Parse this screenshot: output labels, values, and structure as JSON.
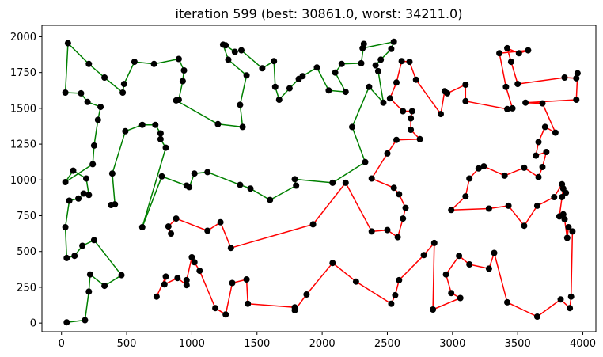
{
  "chart_data": {
    "type": "line",
    "title": "iteration 599 (best: 30861.0, worst: 34211.0)",
    "xlabel": "",
    "ylabel": "",
    "xlim": [
      -150,
      4100
    ],
    "ylim": [
      -60,
      2080
    ],
    "xticks": [
      0,
      500,
      1000,
      1500,
      2000,
      2500,
      3000,
      3500,
      4000
    ],
    "yticks": [
      0,
      250,
      500,
      750,
      1000,
      1250,
      1500,
      1750,
      2000
    ],
    "grid": false,
    "colors": {
      "green_route": "#008000",
      "red_route": "#ff0000",
      "city": "#000000"
    },
    "series": [
      {
        "color": "green",
        "points": [
          [
            40,
            5
          ],
          [
            180,
            20
          ],
          [
            210,
            220
          ],
          [
            220,
            340
          ],
          [
            330,
            260
          ],
          [
            460,
            335
          ],
          [
            250,
            580
          ],
          [
            160,
            540
          ],
          [
            100,
            470
          ],
          [
            40,
            455
          ],
          [
            30,
            670
          ],
          [
            60,
            855
          ],
          [
            130,
            870
          ],
          [
            170,
            905
          ],
          [
            210,
            895
          ],
          [
            190,
            1010
          ],
          [
            90,
            1065
          ],
          [
            30,
            985
          ],
          [
            240,
            1110
          ],
          [
            250,
            1240
          ],
          [
            280,
            1420
          ],
          [
            300,
            1510
          ],
          [
            200,
            1545
          ],
          [
            150,
            1605
          ],
          [
            30,
            1610
          ],
          [
            50,
            1955
          ],
          [
            210,
            1810
          ],
          [
            330,
            1715
          ],
          [
            470,
            1610
          ],
          [
            480,
            1670
          ],
          [
            560,
            1825
          ],
          [
            710,
            1810
          ],
          [
            900,
            1845
          ],
          [
            940,
            1765
          ],
          [
            930,
            1690
          ],
          [
            900,
            1560
          ],
          [
            880,
            1555
          ],
          [
            1200,
            1390
          ],
          [
            1390,
            1370
          ],
          [
            1370,
            1525
          ],
          [
            1420,
            1730
          ],
          [
            1280,
            1840
          ],
          [
            1240,
            1945
          ],
          [
            1260,
            1940
          ],
          [
            1330,
            1895
          ],
          [
            1380,
            1905
          ],
          [
            1540,
            1780
          ],
          [
            1630,
            1830
          ],
          [
            1640,
            1650
          ],
          [
            1670,
            1560
          ],
          [
            1750,
            1640
          ],
          [
            1820,
            1705
          ],
          [
            1850,
            1725
          ],
          [
            1960,
            1785
          ],
          [
            2050,
            1625
          ],
          [
            2180,
            1615
          ],
          [
            2100,
            1750
          ],
          [
            2150,
            1810
          ],
          [
            2300,
            1815
          ],
          [
            2320,
            1950
          ],
          [
            2310,
            1920
          ],
          [
            2550,
            1965
          ],
          [
            2530,
            1915
          ],
          [
            2450,
            1840
          ],
          [
            2410,
            1800
          ],
          [
            2430,
            1760
          ],
          [
            2470,
            1540
          ],
          [
            2360,
            1650
          ],
          [
            2230,
            1370
          ],
          [
            2330,
            1125
          ],
          [
            2080,
            980
          ],
          [
            1790,
            1005
          ],
          [
            1800,
            960
          ],
          [
            1600,
            860
          ],
          [
            1450,
            940
          ],
          [
            1370,
            965
          ],
          [
            1120,
            1055
          ],
          [
            1020,
            1045
          ],
          [
            980,
            950
          ],
          [
            960,
            960
          ],
          [
            770,
            1025
          ],
          [
            620,
            670
          ],
          [
            800,
            1225
          ],
          [
            760,
            1285
          ],
          [
            760,
            1325
          ],
          [
            720,
            1385
          ],
          [
            620,
            1385
          ],
          [
            490,
            1340
          ],
          [
            390,
            1045
          ],
          [
            410,
            830
          ],
          [
            380,
            825
          ]
        ]
      },
      {
        "color": "red",
        "points": [
          [
            730,
            185
          ],
          [
            800,
            325
          ],
          [
            790,
            270
          ],
          [
            890,
            315
          ],
          [
            960,
            265
          ],
          [
            960,
            300
          ],
          [
            1000,
            460
          ],
          [
            1020,
            425
          ],
          [
            1060,
            365
          ],
          [
            1180,
            105
          ],
          [
            1260,
            60
          ],
          [
            1310,
            280
          ],
          [
            1420,
            305
          ],
          [
            1430,
            135
          ],
          [
            1790,
            110
          ],
          [
            1790,
            90
          ],
          [
            1880,
            200
          ],
          [
            2080,
            420
          ],
          [
            2260,
            290
          ],
          [
            2530,
            135
          ],
          [
            2560,
            195
          ],
          [
            2590,
            300
          ],
          [
            2780,
            475
          ],
          [
            2860,
            560
          ],
          [
            2850,
            95
          ],
          [
            3060,
            175
          ],
          [
            2990,
            210
          ],
          [
            2950,
            340
          ],
          [
            3050,
            470
          ],
          [
            3130,
            410
          ],
          [
            3280,
            380
          ],
          [
            3320,
            490
          ],
          [
            3420,
            145
          ],
          [
            3650,
            45
          ],
          [
            3830,
            165
          ],
          [
            3900,
            105
          ],
          [
            3910,
            185
          ],
          [
            3920,
            640
          ],
          [
            3890,
            670
          ],
          [
            3880,
            595
          ],
          [
            3860,
            725
          ],
          [
            3850,
            760
          ],
          [
            3820,
            745
          ],
          [
            3840,
            880
          ],
          [
            3850,
            940
          ],
          [
            3870,
            910
          ],
          [
            3840,
            970
          ],
          [
            3780,
            880
          ],
          [
            3650,
            820
          ],
          [
            3550,
            680
          ],
          [
            3430,
            820
          ],
          [
            3280,
            800
          ],
          [
            2990,
            790
          ],
          [
            3100,
            885
          ],
          [
            3130,
            1010
          ],
          [
            3200,
            1080
          ],
          [
            3240,
            1095
          ],
          [
            3400,
            1030
          ],
          [
            3550,
            1085
          ],
          [
            3660,
            1020
          ],
          [
            3690,
            1090
          ],
          [
            3720,
            1195
          ],
          [
            3640,
            1170
          ],
          [
            3660,
            1265
          ],
          [
            3710,
            1370
          ],
          [
            3790,
            1330
          ],
          [
            3690,
            1535
          ],
          [
            3560,
            1540
          ],
          [
            3950,
            1560
          ],
          [
            3960,
            1745
          ],
          [
            3950,
            1710
          ],
          [
            3860,
            1715
          ],
          [
            3500,
            1670
          ],
          [
            3450,
            1825
          ],
          [
            3420,
            1920
          ],
          [
            3510,
            1885
          ],
          [
            3580,
            1905
          ],
          [
            3360,
            1885
          ],
          [
            3410,
            1650
          ],
          [
            3460,
            1500
          ],
          [
            3420,
            1495
          ],
          [
            3100,
            1550
          ],
          [
            3100,
            1665
          ],
          [
            2960,
            1605
          ],
          [
            2940,
            1620
          ],
          [
            2910,
            1460
          ],
          [
            2720,
            1700
          ],
          [
            2670,
            1825
          ],
          [
            2610,
            1830
          ],
          [
            2570,
            1680
          ],
          [
            2520,
            1570
          ],
          [
            2620,
            1480
          ],
          [
            2690,
            1480
          ],
          [
            2680,
            1430
          ],
          [
            2680,
            1350
          ],
          [
            2750,
            1285
          ],
          [
            2570,
            1280
          ],
          [
            2500,
            1185
          ],
          [
            2380,
            1010
          ],
          [
            2550,
            945
          ],
          [
            2590,
            900
          ],
          [
            2640,
            805
          ],
          [
            2620,
            730
          ],
          [
            2580,
            600
          ],
          [
            2500,
            650
          ],
          [
            2380,
            640
          ],
          [
            2180,
            980
          ],
          [
            1930,
            690
          ],
          [
            1300,
            525
          ],
          [
            1220,
            705
          ],
          [
            1120,
            645
          ],
          [
            880,
            730
          ],
          [
            820,
            675
          ],
          [
            840,
            625
          ]
        ]
      }
    ]
  }
}
